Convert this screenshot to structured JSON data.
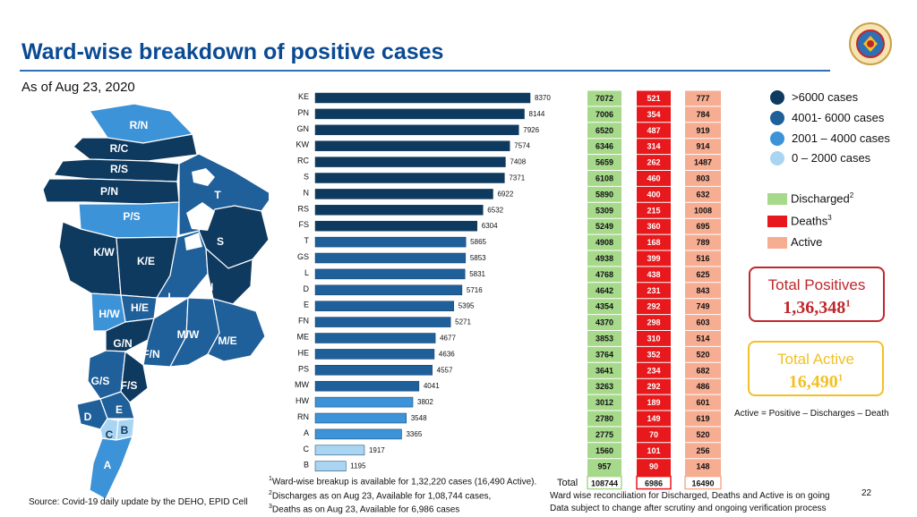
{
  "header": {
    "title": "Ward-wise breakdown of positive cases",
    "as_of": "As of Aug 23, 2020"
  },
  "legend": {
    "ranges": [
      ">6000 cases",
      "4001- 6000 cases",
      "2001 – 4000 cases",
      "0 – 2000 cases"
    ],
    "range_colors": [
      "#0f3a5f",
      "#1f5f9a",
      "#3d93d8",
      "#a9d4f2"
    ],
    "discharged": "Discharged",
    "discharged_sup": "2",
    "deaths": "Deaths",
    "deaths_sup": "3",
    "active": "Active",
    "discharged_color": "#a7d98b",
    "deaths_color": "#e8191c",
    "active_color": "#f6ad92"
  },
  "total_positives": {
    "label": "Total Positives",
    "value": "1,36,348",
    "sup": "1",
    "color": "#c0272d"
  },
  "total_active": {
    "label": "Total Active",
    "value": "16,490",
    "sup": "1",
    "color": "#f2c026"
  },
  "formula": "Active = Positive – Discharges – Death",
  "chart_data": {
    "type": "bar",
    "orientation": "horizontal",
    "title": "Ward-wise breakdown of positive cases",
    "categories": [
      "KE",
      "PN",
      "GN",
      "KW",
      "RC",
      "S",
      "N",
      "RS",
      "FS",
      "T",
      "GS",
      "L",
      "D",
      "E",
      "FN",
      "ME",
      "HE",
      "PS",
      "MW",
      "HW",
      "RN",
      "A",
      "C",
      "B"
    ],
    "values": [
      8370,
      8144,
      7926,
      7574,
      7408,
      7371,
      6922,
      6532,
      6304,
      5865,
      5853,
      5831,
      5716,
      5395,
      5271,
      4677,
      4636,
      4557,
      4041,
      3802,
      3548,
      3365,
      1917,
      1195
    ],
    "xlim": [
      0,
      9000
    ],
    "table": {
      "columns": [
        "Discharged",
        "Deaths",
        "Active"
      ],
      "discharged": [
        7072,
        7006,
        6520,
        6346,
        5659,
        6108,
        5890,
        5309,
        5249,
        4908,
        4938,
        4768,
        4642,
        4354,
        4370,
        3853,
        3764,
        3641,
        3263,
        3012,
        2780,
        2775,
        1560,
        957
      ],
      "deaths": [
        521,
        354,
        487,
        314,
        262,
        460,
        400,
        215,
        360,
        168,
        399,
        438,
        231,
        292,
        298,
        310,
        352,
        234,
        292,
        189,
        149,
        70,
        101,
        90
      ],
      "active": [
        777,
        784,
        919,
        914,
        1487,
        803,
        632,
        1008,
        695,
        789,
        516,
        625,
        843,
        749,
        603,
        514,
        520,
        682,
        486,
        601,
        619,
        520,
        256,
        148
      ],
      "total_label": "Total",
      "totals": [
        "108744",
        "6986",
        "16490"
      ]
    }
  },
  "map": {
    "wards": [
      "R/N",
      "R/C",
      "R/S",
      "P/N",
      "P/S",
      "T",
      "K/W",
      "K/E",
      "S",
      "H/E",
      "L",
      "N",
      "H/W",
      "G/N",
      "F/N",
      "M/W",
      "M/E",
      "G/S",
      "F/S",
      "E",
      "D",
      "C",
      "B",
      "A"
    ]
  },
  "footnotes": {
    "source": "Source: Covid-19 daily update by the DEHO, EPID Cell",
    "f1": "Ward-wise breakup is available for 1,32,220 cases (16,490 Active).",
    "f2": "Discharges as on Aug 23, Available for 1,08,744  cases,",
    "f3": "Deaths as on Aug 23, Available for 6,986 cases",
    "f4": "Ward wise reconciliation for Discharged, Deaths and Active is on going",
    "f5": "Data subject to change after scrutiny and ongoing verification process",
    "page": "22"
  }
}
